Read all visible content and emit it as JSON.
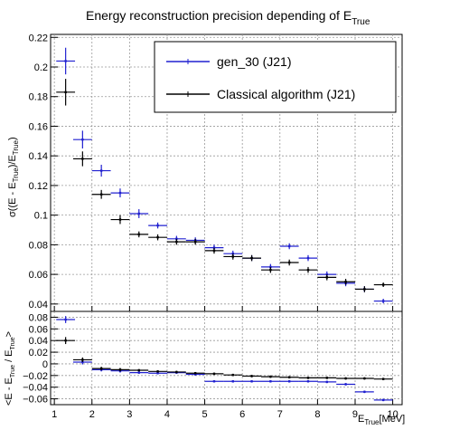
{
  "chart_data": [
    {
      "type": "scatter",
      "panel": "upper",
      "title": "Energy reconstruction precision depending of E",
      "title_sub": "True",
      "ylabel": "σ((E - E_True)/E_True)",
      "xlim": [
        0.9,
        10.25
      ],
      "ylim": [
        0.035,
        0.222
      ],
      "yticks": [
        0.04,
        0.06,
        0.08,
        0.1,
        0.12,
        0.14,
        0.16,
        0.18,
        0.2,
        0.22
      ],
      "ytick_labels": [
        "0.04",
        "0.06",
        "0.08",
        "0.1",
        "0.12",
        "0.14",
        "0.16",
        "0.18",
        "0.2",
        "0.22"
      ],
      "grid": true,
      "legend_position": "top-right",
      "series": [
        {
          "name": "gen_30 (J21)",
          "color": "#2020d0",
          "x": [
            1.3,
            1.75,
            2.25,
            2.75,
            3.25,
            3.75,
            4.25,
            4.75,
            5.25,
            5.75,
            6.25,
            6.75,
            7.25,
            7.75,
            8.25,
            8.75,
            9.25,
            9.75
          ],
          "xerr": 0.25,
          "y": [
            0.204,
            0.151,
            0.13,
            0.115,
            0.101,
            0.093,
            0.084,
            0.083,
            0.078,
            0.074,
            0.071,
            0.065,
            0.079,
            0.071,
            0.06,
            0.054,
            0.05,
            0.042
          ],
          "yerr": [
            0.009,
            0.006,
            0.004,
            0.003,
            0.003,
            0.002,
            0.002,
            0.002,
            0.002,
            0.002,
            0.002,
            0.002,
            0.002,
            0.002,
            0.002,
            0.002,
            0.002,
            0.0015
          ]
        },
        {
          "name": "Classical algorithm (J21)",
          "color": "#000000",
          "x": [
            1.3,
            1.75,
            2.25,
            2.75,
            3.25,
            3.75,
            4.25,
            4.75,
            5.25,
            5.75,
            6.25,
            6.75,
            7.25,
            7.75,
            8.25,
            8.75,
            9.25,
            9.75
          ],
          "xerr": 0.25,
          "y": [
            0.183,
            0.138,
            0.114,
            0.097,
            0.087,
            0.085,
            0.082,
            0.082,
            0.076,
            0.072,
            0.071,
            0.063,
            0.068,
            0.063,
            0.058,
            0.055,
            0.05,
            0.053
          ],
          "yerr": [
            0.009,
            0.005,
            0.003,
            0.003,
            0.002,
            0.002,
            0.002,
            0.002,
            0.002,
            0.002,
            0.002,
            0.002,
            0.002,
            0.002,
            0.002,
            0.002,
            0.002,
            0.0015
          ]
        }
      ]
    },
    {
      "type": "scatter",
      "panel": "lower",
      "ylabel": "<E - E_True / E_True>",
      "xlabel": "E_True [MeV]",
      "xlim": [
        0.9,
        10.25
      ],
      "ylim": [
        -0.07,
        0.09
      ],
      "xticks": [
        1,
        2,
        3,
        4,
        5,
        6,
        7,
        8,
        9,
        10
      ],
      "xtick_labels": [
        "1",
        "2",
        "3",
        "4",
        "5",
        "6",
        "7",
        "8",
        "9",
        "10"
      ],
      "yticks": [
        -0.06,
        -0.04,
        -0.02,
        0,
        0.02,
        0.04,
        0.06,
        0.08
      ],
      "ytick_labels": [
        "−0.06",
        "−0.04",
        "−0.02",
        "0",
        "0.02",
        "0.04",
        "0.06",
        "0.08"
      ],
      "grid": true,
      "series": [
        {
          "name": "gen_30 (J21)",
          "color": "#2020d0",
          "x": [
            1.3,
            1.75,
            2.25,
            2.75,
            3.25,
            3.75,
            4.25,
            4.75,
            5.25,
            5.75,
            6.25,
            6.75,
            7.25,
            7.75,
            8.25,
            8.75,
            9.25,
            9.75
          ],
          "xerr": 0.25,
          "y": [
            0.076,
            0.003,
            -0.01,
            -0.012,
            -0.015,
            -0.016,
            -0.015,
            -0.018,
            -0.03,
            -0.03,
            -0.03,
            -0.03,
            -0.03,
            -0.03,
            -0.031,
            -0.035,
            -0.048,
            -0.062
          ],
          "yerr": [
            0.006,
            0.004,
            0.003,
            0.003,
            0.002,
            0.002,
            0.002,
            0.002,
            0.002,
            0.002,
            0.002,
            0.002,
            0.002,
            0.002,
            0.002,
            0.002,
            0.002,
            0.002
          ]
        },
        {
          "name": "Classical algorithm (J21)",
          "color": "#000000",
          "x": [
            1.3,
            1.75,
            2.25,
            2.75,
            3.25,
            3.75,
            4.25,
            4.75,
            5.25,
            5.75,
            6.25,
            6.75,
            7.25,
            7.75,
            8.25,
            8.75,
            9.25,
            9.75
          ],
          "xerr": 0.25,
          "y": [
            0.04,
            0.007,
            -0.008,
            -0.01,
            -0.011,
            -0.013,
            -0.014,
            -0.016,
            -0.017,
            -0.019,
            -0.021,
            -0.022,
            -0.023,
            -0.024,
            -0.024,
            -0.025,
            -0.025,
            -0.026
          ],
          "yerr": [
            0.006,
            0.004,
            0.003,
            0.003,
            0.002,
            0.002,
            0.002,
            0.002,
            0.002,
            0.002,
            0.002,
            0.002,
            0.002,
            0.002,
            0.002,
            0.002,
            0.002,
            0.002
          ]
        }
      ]
    }
  ],
  "legend": {
    "entries": [
      "gen_30 (J21)",
      "Classical algorithm (J21)"
    ],
    "position": "top-right"
  },
  "labels": {
    "title_main": "Energy reconstruction precision depending of E",
    "title_sub": "True",
    "upper_ylabel": "σ((E - E",
    "upper_ylabel_sub1": "True",
    "upper_ylabel_mid": ")/E",
    "upper_ylabel_sub2": "True",
    "upper_ylabel_end": ")",
    "lower_ylabel": "<E - E",
    "lower_ylabel_sub1": "True",
    "lower_ylabel_mid": " / E",
    "lower_ylabel_sub2": "True",
    "lower_ylabel_end": ">",
    "xlabel_main": "E",
    "xlabel_sub": "True",
    "xlabel_unit": "[MeV]"
  }
}
